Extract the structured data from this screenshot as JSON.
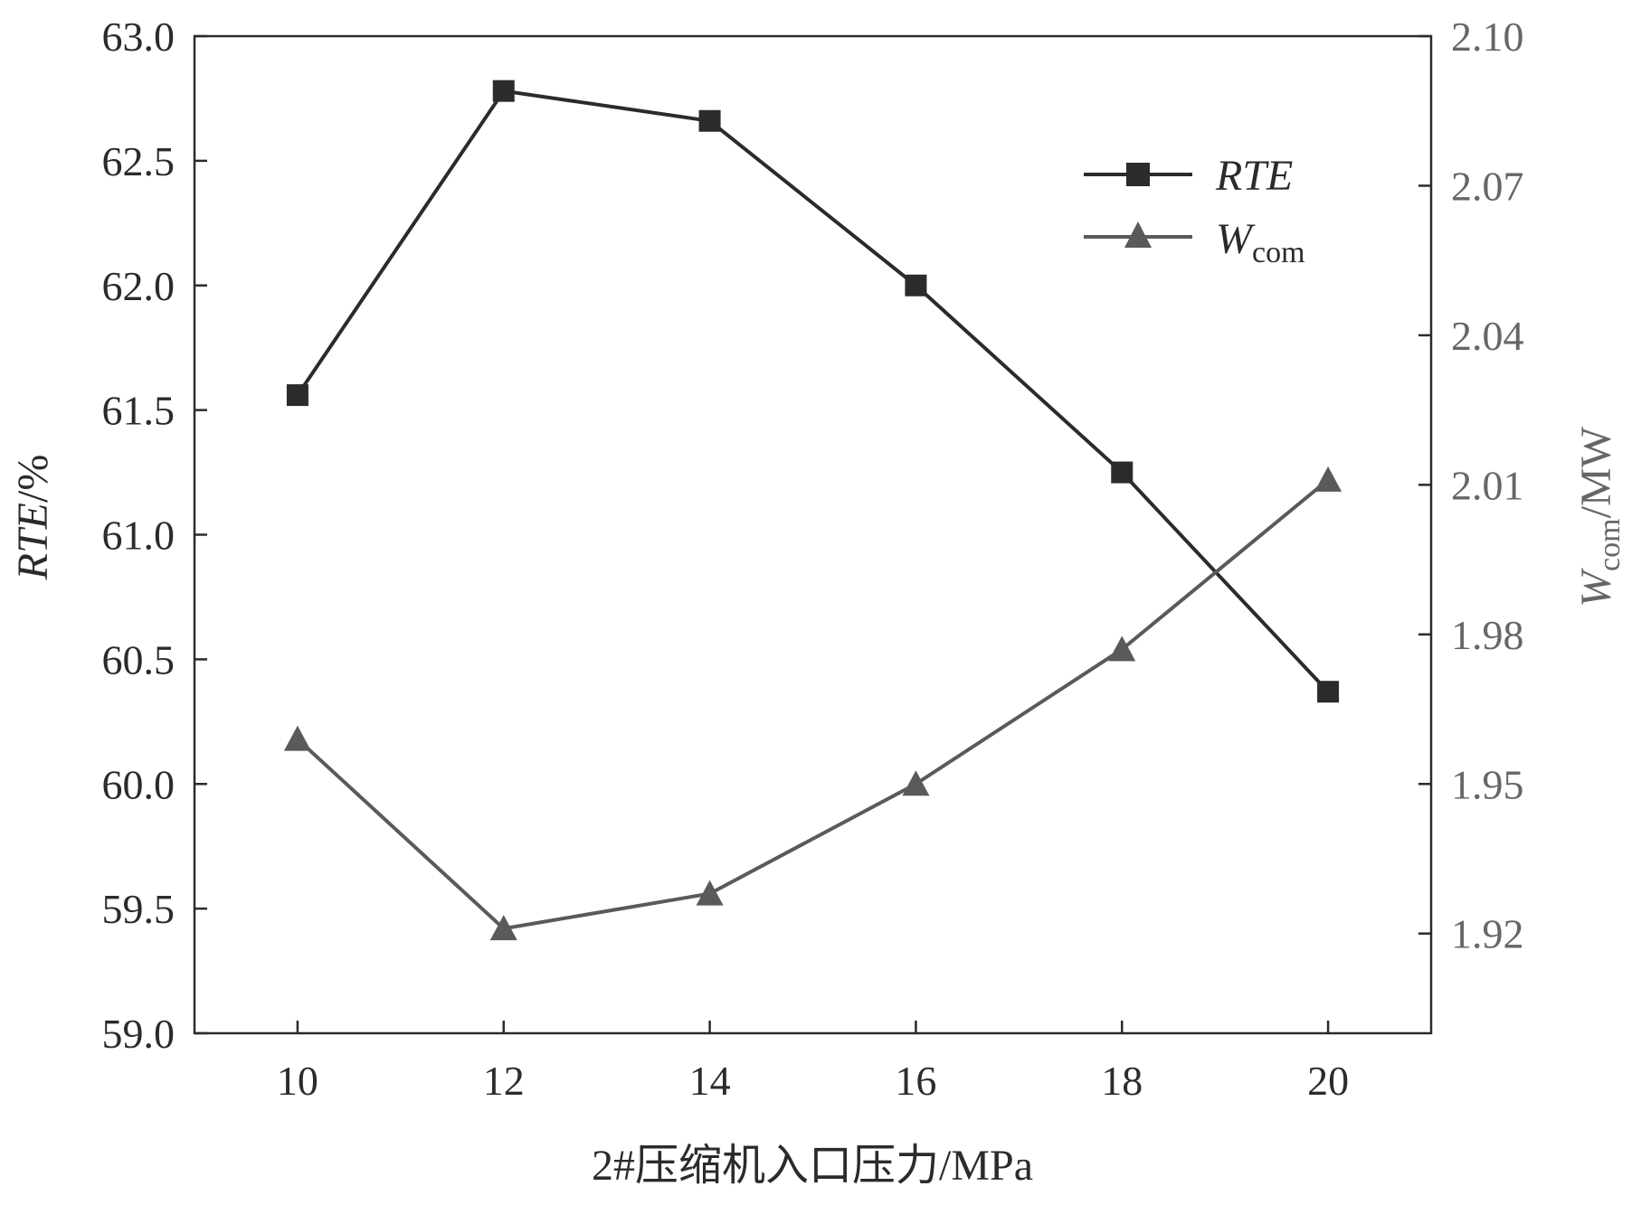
{
  "chart_data": {
    "type": "line",
    "x": [
      10,
      12,
      14,
      16,
      18,
      20
    ],
    "x_ticks": [
      "10",
      "12",
      "14",
      "16",
      "18",
      "20"
    ],
    "xlim": [
      9,
      21
    ],
    "xlabel": "2#压缩机入口压力/MPa",
    "y_left": {
      "label_main": "RTE",
      "label_unit": "/%",
      "lim": [
        59.0,
        63.0
      ],
      "ticks": [
        "59.0",
        "59.5",
        "60.0",
        "60.5",
        "61.0",
        "61.5",
        "62.0",
        "62.5",
        "63.0"
      ],
      "tick_values": [
        59.0,
        59.5,
        60.0,
        60.5,
        61.0,
        61.5,
        62.0,
        62.5,
        63.0
      ]
    },
    "y_right": {
      "label_main": "W",
      "label_sub": "com",
      "label_unit": "/MW",
      "lim": [
        1.9,
        2.1
      ],
      "ticks": [
        "1.92",
        "1.95",
        "1.98",
        "2.01",
        "2.04",
        "2.07",
        "2.10"
      ],
      "tick_values": [
        1.92,
        1.95,
        1.98,
        2.01,
        2.04,
        2.07,
        2.1
      ]
    },
    "series": [
      {
        "name": "RTE",
        "axis": "left",
        "marker": "square",
        "color": "#2b2b2b",
        "values": [
          61.56,
          62.78,
          62.66,
          62.0,
          61.25,
          60.37
        ]
      },
      {
        "name_main": "W",
        "name_sub": "com",
        "axis": "right",
        "marker": "triangle",
        "color": "#5a5a5a",
        "values": [
          1.959,
          1.921,
          1.928,
          1.95,
          1.977,
          2.011
        ]
      }
    ],
    "legend_position": "top-right",
    "grid": false
  }
}
